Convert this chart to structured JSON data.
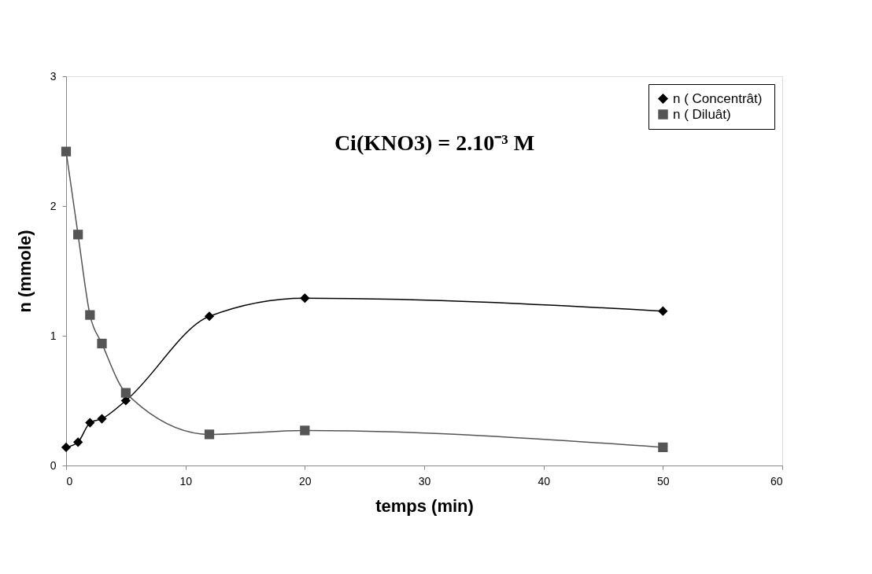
{
  "chart_data": {
    "type": "line",
    "xlabel": "temps (min)",
    "ylabel": "n (mmole)",
    "annotations": [
      "Ci(KNO3) = 2.10⁻³ M"
    ],
    "xlim": [
      0,
      60
    ],
    "xticks": [
      0,
      10,
      20,
      30,
      40,
      50,
      60
    ],
    "ylim": [
      0,
      3
    ],
    "yticks": [
      0,
      1,
      2,
      3
    ],
    "grid": false,
    "legend": "top right",
    "line_style": "solid",
    "series": [
      {
        "name": "n  ( Concentrât)",
        "color": "#000000",
        "marker": "diamond",
        "x": [
          0,
          1,
          2,
          3,
          5,
          12,
          20,
          50
        ],
        "values": [
          0.14,
          0.18,
          0.33,
          0.36,
          0.5,
          1.15,
          1.29,
          1.19
        ]
      },
      {
        "name": "n ( Diluât)",
        "color": "#555555",
        "marker": "square",
        "x": [
          0,
          1,
          2,
          3,
          5,
          12,
          20,
          50
        ],
        "values": [
          2.42,
          1.78,
          1.16,
          0.94,
          0.56,
          0.24,
          0.27,
          0.14
        ]
      }
    ]
  }
}
